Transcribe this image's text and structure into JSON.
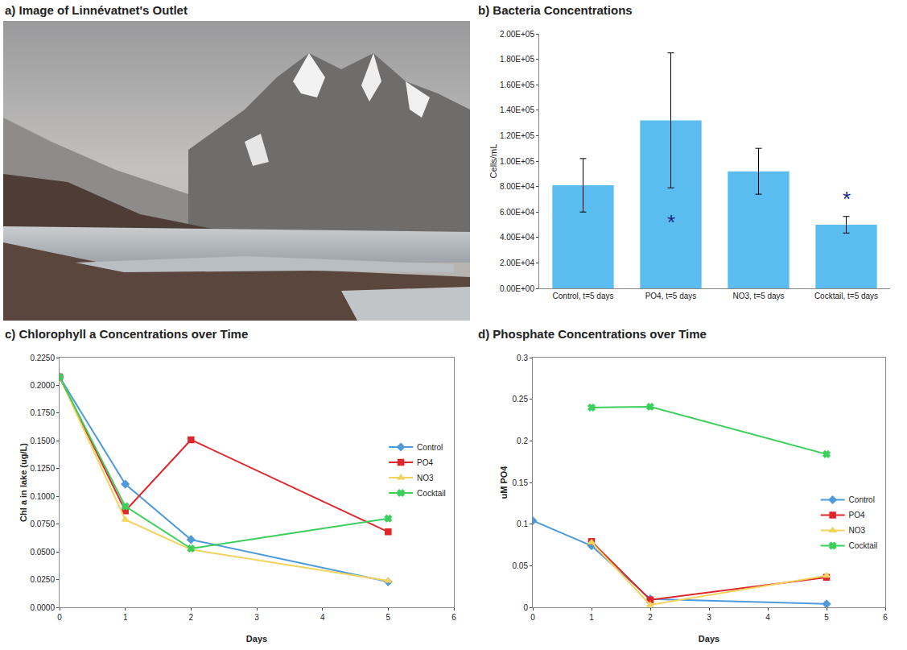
{
  "chart_data": [
    {
      "type": "image",
      "title": "a) Image of Linnévatnet's Outlet"
    },
    {
      "type": "bar",
      "title": "b) Bacteria Concentrations",
      "categories": [
        "Control, t=5 days",
        "PO4, t=5 days",
        "NO3, t=5 days",
        "Cocktail, t=5 days"
      ],
      "values": [
        81000,
        132000,
        92000,
        50000
      ],
      "errors": [
        21000,
        53000,
        18000,
        6500
      ],
      "color": "#5bbcf0",
      "y_label": "Cells/mL",
      "ylim": [
        0,
        200000
      ],
      "yticks": [
        {
          "value": 0,
          "label": "0.00E+00"
        },
        {
          "value": 20000,
          "label": "2.00E+04"
        },
        {
          "value": 40000,
          "label": "4.00E+04"
        },
        {
          "value": 60000,
          "label": "6.00E+04"
        },
        {
          "value": 80000,
          "label": "8.00E+04"
        },
        {
          "value": 100000,
          "label": "1.00E+05"
        },
        {
          "value": 120000,
          "label": "1.20E+05"
        },
        {
          "value": 140000,
          "label": "1.40E+05"
        },
        {
          "value": 160000,
          "label": "1.60E+05"
        },
        {
          "value": 180000,
          "label": "1.80E+05"
        },
        {
          "value": 200000,
          "label": "2.00E+05"
        }
      ],
      "annotations": [
        {
          "text": "*",
          "category": "PO4, t=5 days",
          "y": 52000,
          "color": "#1a2a80"
        },
        {
          "text": "*",
          "category": "Cocktail, t=5 days",
          "y": 70000,
          "color": "#1a2a80"
        }
      ],
      "grid": false
    },
    {
      "type": "line",
      "title": "c) Chlorophyll a Concentrations over Time",
      "x": [
        0,
        1,
        2,
        5
      ],
      "series": [
        {
          "name": "Control",
          "color": "#4f9bd9",
          "marker": "diamond",
          "values": [
            0.2075,
            0.111,
            0.061,
            0.023
          ]
        },
        {
          "name": "PO4",
          "color": "#e0262b",
          "marker": "square",
          "values": [
            0.2075,
            0.087,
            0.151,
            0.068
          ]
        },
        {
          "name": "NO3",
          "color": "#f2d35e",
          "marker": "triangle",
          "values": [
            0.2075,
            0.079,
            0.052,
            0.024
          ]
        },
        {
          "name": "Cocktail",
          "color": "#3ccf5c",
          "marker": "x",
          "values": [
            0.2075,
            0.091,
            0.053,
            0.08
          ]
        }
      ],
      "x_label": "Days",
      "y_label": "Chl a in lake (ug/L)",
      "xlim": [
        0,
        6
      ],
      "xticks": [
        0,
        1,
        2,
        3,
        4,
        5,
        6
      ],
      "ylim": [
        0,
        0.225
      ],
      "yticks": [
        {
          "value": 0,
          "label": "0.0000"
        },
        {
          "value": 0.025,
          "label": "0.0250"
        },
        {
          "value": 0.05,
          "label": "0.0500"
        },
        {
          "value": 0.075,
          "label": "0.0750"
        },
        {
          "value": 0.1,
          "label": "0.1000"
        },
        {
          "value": 0.125,
          "label": "0.1250"
        },
        {
          "value": 0.15,
          "label": "0.1500"
        },
        {
          "value": 0.175,
          "label": "0.1750"
        },
        {
          "value": 0.2,
          "label": "0.2000"
        },
        {
          "value": 0.225,
          "label": "0.2250"
        }
      ],
      "legend": "right",
      "grid": false
    },
    {
      "type": "line",
      "title": "d) Phosphate Concentrations over Time",
      "x": [
        0,
        1,
        2,
        5
      ],
      "series": [
        {
          "name": "Control",
          "color": "#4f9bd9",
          "marker": "diamond",
          "values": [
            0.104,
            0.074,
            0.01,
            0.004
          ]
        },
        {
          "name": "PO4",
          "color": "#e0262b",
          "marker": "square",
          "values": [
            null,
            0.079,
            0.009,
            0.036
          ]
        },
        {
          "name": "NO3",
          "color": "#f2d35e",
          "marker": "triangle",
          "values": [
            null,
            0.078,
            0.003,
            0.038
          ]
        },
        {
          "name": "Cocktail",
          "color": "#3ccf5c",
          "marker": "x",
          "values": [
            null,
            0.24,
            0.241,
            0.184
          ]
        }
      ],
      "x_label": "Days",
      "y_label": "uM PO4",
      "xlim": [
        0,
        6
      ],
      "xticks": [
        0,
        1,
        2,
        3,
        4,
        5,
        6
      ],
      "ylim": [
        0,
        0.3
      ],
      "yticks": [
        0,
        0.05,
        0.1,
        0.15,
        0.2,
        0.25,
        0.3
      ],
      "legend": "lower right",
      "grid": false
    }
  ]
}
